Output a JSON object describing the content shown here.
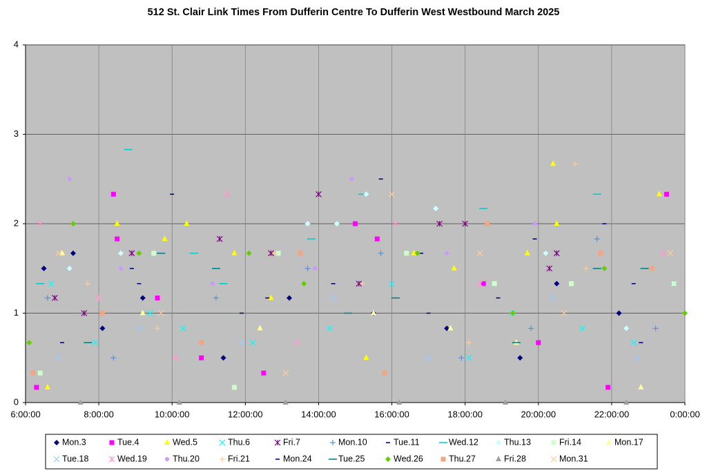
{
  "chart_data": {
    "type": "scatter",
    "title": "512 St. Clair Link Times From Dufferin Centre To Dufferin West Westbound March 2025",
    "xlim": [
      6,
      24
    ],
    "xticks": [
      {
        "value": 6,
        "label": "6:00:00"
      },
      {
        "value": 8,
        "label": "8:00:00"
      },
      {
        "value": 10,
        "label": "10:00:00"
      },
      {
        "value": 12,
        "label": "12:00:00"
      },
      {
        "value": 14,
        "label": "14:00:00"
      },
      {
        "value": 16,
        "label": "16:00:00"
      },
      {
        "value": 18,
        "label": "18:00:00"
      },
      {
        "value": 20,
        "label": "20:00:00"
      },
      {
        "value": 22,
        "label": "22:00:00"
      },
      {
        "value": 24,
        "label": "0:00:00"
      }
    ],
    "ylim": [
      0,
      4
    ],
    "yticks": [
      0,
      1,
      2,
      3,
      4
    ],
    "grid": true,
    "background": "#c0c0c0",
    "series": [
      {
        "name": "Mon.3",
        "color": "#000080",
        "marker": "diamond",
        "x": [
          6.5,
          7.3,
          8.1,
          9.2,
          11.4,
          13.2,
          15.5,
          17.5,
          19.5,
          20.5,
          22.2,
          23.7
        ],
        "y": [
          1.5,
          1.67,
          0.83,
          1.17,
          0.5,
          1.17,
          1,
          0.83,
          0.5,
          1.33,
          1,
          1.33
        ]
      },
      {
        "name": "Tue.4",
        "color": "#ff00ff",
        "marker": "square",
        "x": [
          6.3,
          8.4,
          8.5,
          9.6,
          10.8,
          12.5,
          15,
          15.6,
          18.5,
          20,
          21.9,
          23.5
        ],
        "y": [
          0.17,
          2.33,
          1.83,
          1.17,
          0.5,
          0.33,
          2,
          1.83,
          1.33,
          0.67,
          0.17,
          2.33
        ]
      },
      {
        "name": "Wed.5",
        "color": "#ffff00",
        "marker": "triangle",
        "x": [
          6.6,
          8.5,
          9.8,
          10.4,
          11.7,
          12.7,
          15.3,
          16.6,
          17.7,
          19.7,
          20.4,
          20.5,
          23.3
        ],
        "y": [
          0.17,
          2,
          1.83,
          2,
          1.67,
          1.17,
          0.5,
          1.67,
          1.5,
          1.67,
          2.67,
          2,
          2.33
        ]
      },
      {
        "name": "Thu.6",
        "color": "#00ffff",
        "marker": "x",
        "x": [
          6.7,
          7.9,
          9.4,
          10.3,
          12.2,
          14.3,
          16,
          18.1,
          19.3,
          21.2,
          22.6
        ],
        "y": [
          1.33,
          0.67,
          1,
          0.83,
          0.67,
          0.83,
          1.33,
          0.5,
          1,
          0.83,
          0.67
        ]
      },
      {
        "name": "Fri.7",
        "color": "#800080",
        "marker": "star",
        "x": [
          6.8,
          7.6,
          8.9,
          11.3,
          12.7,
          14,
          15.1,
          17.3,
          18,
          20.3,
          20.5
        ],
        "y": [
          1.17,
          1,
          1.67,
          1.83,
          1.67,
          2.33,
          1.33,
          2,
          2,
          1.5,
          1.67
        ]
      },
      {
        "name": "Mon.10",
        "color": "#5b8fd6",
        "marker": "plus",
        "x": [
          6.6,
          8.4,
          11.2,
          13.7,
          15.7,
          17.9,
          19.8,
          21.6,
          23.2
        ],
        "y": [
          1.17,
          0.5,
          1.17,
          1.5,
          1.67,
          0.5,
          0.83,
          1.83,
          0.83
        ]
      },
      {
        "name": "Tue.11",
        "color": "#000080",
        "marker": "dash",
        "x": [
          7,
          8.9,
          10,
          12.6,
          15.7,
          17,
          18.9,
          21.8,
          22.8
        ],
        "y": [
          0.67,
          1.5,
          2.33,
          1.17,
          2.5,
          1,
          1.17,
          2,
          0.67
        ]
      },
      {
        "name": "Wed.12",
        "color": "#00cccc",
        "marker": "longdash",
        "x": [
          6.4,
          8.8,
          10.6,
          11.4,
          13.8,
          15.2,
          18.5,
          21.6
        ],
        "y": [
          1.33,
          2.83,
          1.67,
          1.33,
          1.83,
          2.33,
          2.17,
          2.33
        ]
      },
      {
        "name": "Thu.13",
        "color": "#ccffff",
        "marker": "diamond",
        "x": [
          7.2,
          8.6,
          13.7,
          14.5,
          15.3,
          17.2,
          20.2,
          22.4
        ],
        "y": [
          1.5,
          1.67,
          2,
          2,
          2.33,
          2.17,
          1.67,
          0.83
        ]
      },
      {
        "name": "Fri.14",
        "color": "#ccffcc",
        "marker": "square",
        "x": [
          6.4,
          9.5,
          11.7,
          12.9,
          16.4,
          18.8,
          20.9,
          23.7
        ],
        "y": [
          0.33,
          1.67,
          0.17,
          1.67,
          1.67,
          1.33,
          1.33,
          1.33
        ]
      },
      {
        "name": "Mon.17",
        "color": "#ffff99",
        "marker": "triangle",
        "x": [
          7,
          9.2,
          12.4,
          15.5,
          17.6,
          19.4,
          22.8
        ],
        "y": [
          1.67,
          1,
          0.83,
          1,
          0.83,
          0.67,
          0.17
        ]
      },
      {
        "name": "Tue.18",
        "color": "#99ccff",
        "marker": "x",
        "x": [
          6.9,
          9.1,
          11.9,
          14.4,
          17,
          20.4,
          22.7
        ],
        "y": [
          0.5,
          0.83,
          0.67,
          1.17,
          0.5,
          1.17,
          0.5
        ]
      },
      {
        "name": "Wed.19",
        "color": "#ff99cc",
        "marker": "star",
        "x": [
          6.4,
          8,
          10.1,
          11.5,
          13.4,
          16.1,
          18.4,
          21.7,
          23.4
        ],
        "y": [
          2,
          1.17,
          0.5,
          2.33,
          0.67,
          2,
          1.33,
          1.67,
          1.67
        ]
      },
      {
        "name": "Thu.20",
        "color": "#cc99ff",
        "marker": "circle",
        "x": [
          7.2,
          8.6,
          11.1,
          13.9,
          14.9,
          17.5,
          19.9
        ],
        "y": [
          2.5,
          1.5,
          1.33,
          1.5,
          2.5,
          1.67,
          2
        ]
      },
      {
        "name": "Fri.21",
        "color": "#ffcc99",
        "marker": "plus",
        "x": [
          7.7,
          9.6,
          12.8,
          15.2,
          18.1,
          21,
          21.3
        ],
        "y": [
          1.33,
          0.83,
          1.67,
          1.33,
          0.67,
          2.67,
          1.5
        ]
      },
      {
        "name": "Mon.24",
        "color": "#000080",
        "marker": "dash",
        "x": [
          6.2,
          9.1,
          11.9,
          14.4,
          16.8,
          19.9,
          22.6
        ],
        "y": [
          0.33,
          1.33,
          1,
          1.33,
          1.67,
          1.83,
          1.33
        ]
      },
      {
        "name": "Tue.25",
        "color": "#008080",
        "marker": "longdash",
        "x": [
          7.7,
          9.7,
          11.2,
          14.8,
          16.1,
          19.4,
          21.6,
          22.9
        ],
        "y": [
          0.67,
          1.67,
          1.5,
          1,
          1.17,
          0.67,
          1.5,
          1.5
        ]
      },
      {
        "name": "Wed.26",
        "color": "#66cc00",
        "marker": "diamond",
        "x": [
          6.1,
          7.3,
          9.1,
          12.1,
          13.6,
          16.7,
          19.3,
          21.8,
          24
        ],
        "y": [
          0.67,
          2,
          1.67,
          1.67,
          1.33,
          1.67,
          1,
          1.5,
          1
        ]
      },
      {
        "name": "Thu.27",
        "color": "#f4a582",
        "marker": "square",
        "x": [
          6.2,
          8.1,
          10.8,
          13.5,
          15.8,
          18.6,
          21.7,
          23.1
        ],
        "y": [
          0.33,
          1,
          0.67,
          1.67,
          0.33,
          2,
          1.67,
          1.5
        ]
      },
      {
        "name": "Fri.28",
        "color": "#a0a0a0",
        "marker": "triangle",
        "x": [
          7.5,
          10.2,
          13.1,
          16.2,
          19.1,
          22.4
        ],
        "y": [
          0,
          0,
          0,
          0,
          0,
          0
        ]
      },
      {
        "name": "Mon.31",
        "color": "#ffcc99",
        "marker": "x",
        "x": [
          6.9,
          9.7,
          13.1,
          16,
          18.4,
          20.7,
          23.6
        ],
        "y": [
          1.67,
          1,
          0.33,
          2.33,
          1.67,
          1,
          1.67
        ]
      }
    ]
  }
}
